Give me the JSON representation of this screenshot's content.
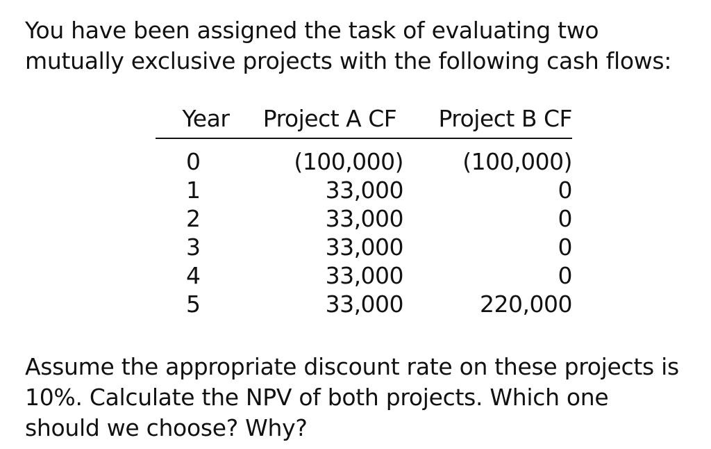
{
  "intro": {
    "line1": "You have been assigned the task of evaluating two",
    "line2": "mutually exclusive projects with the following cash flows:"
  },
  "table": {
    "headers": {
      "year": "Year",
      "project_a": "Project A CF",
      "project_b": "Project B CF"
    },
    "rows": [
      {
        "year": "0",
        "a": "(100,000)",
        "b": "(100,000)"
      },
      {
        "year": "1",
        "a": "33,000",
        "b": "0"
      },
      {
        "year": "2",
        "a": "33,000",
        "b": "0"
      },
      {
        "year": "3",
        "a": "33,000",
        "b": "0"
      },
      {
        "year": "4",
        "a": "33,000",
        "b": "0"
      },
      {
        "year": "5",
        "a": "33,000",
        "b": "220,000"
      }
    ]
  },
  "question": {
    "line1": "Assume the appropriate discount rate on these projects is",
    "line2": "10%. Calculate the NPV of both projects. Which one",
    "line3": "should we choose? Why?"
  }
}
